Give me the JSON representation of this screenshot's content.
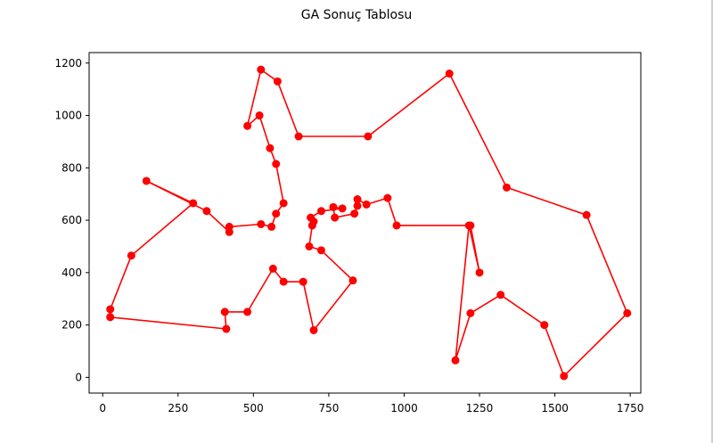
{
  "chart_data": {
    "type": "line",
    "title": "GA Sonuç Tablosu",
    "xlabel": "",
    "ylabel": "",
    "xlim": [
      -45,
      1785
    ],
    "ylim": [
      -60,
      1240
    ],
    "x_ticks": [
      0,
      250,
      500,
      750,
      1000,
      1250,
      1500,
      1750
    ],
    "y_ticks": [
      0,
      200,
      400,
      600,
      800,
      1000,
      1200
    ],
    "grid": false,
    "legend": "none",
    "series_color": "#ff0000",
    "marker": "circle",
    "closed": true,
    "series": [
      {
        "x": [
          880,
          1150,
          1340,
          1605,
          1740,
          1530,
          1465,
          1320,
          1220,
          1170,
          1215,
          1250,
          1220,
          975,
          945,
          875,
          845,
          845,
          835,
          770,
          765,
          795,
          725,
          690,
          700,
          695,
          685,
          725,
          830,
          700,
          665,
          600,
          565,
          480,
          405,
          410,
          25,
          25,
          95,
          300,
          145,
          345,
          420,
          420,
          525,
          560,
          575,
          600,
          575,
          555,
          520,
          480,
          525,
          580,
          650
        ],
        "y": [
          920,
          1160,
          725,
          620,
          245,
          5,
          200,
          315,
          245,
          65,
          580,
          400,
          580,
          580,
          685,
          660,
          680,
          655,
          625,
          610,
          650,
          645,
          635,
          610,
          595,
          580,
          500,
          485,
          370,
          180,
          365,
          365,
          415,
          250,
          250,
          185,
          230,
          260,
          465,
          665,
          750,
          635,
          555,
          575,
          585,
          575,
          625,
          665,
          815,
          875,
          1000,
          960,
          1175,
          1130,
          920
        ]
      }
    ]
  }
}
